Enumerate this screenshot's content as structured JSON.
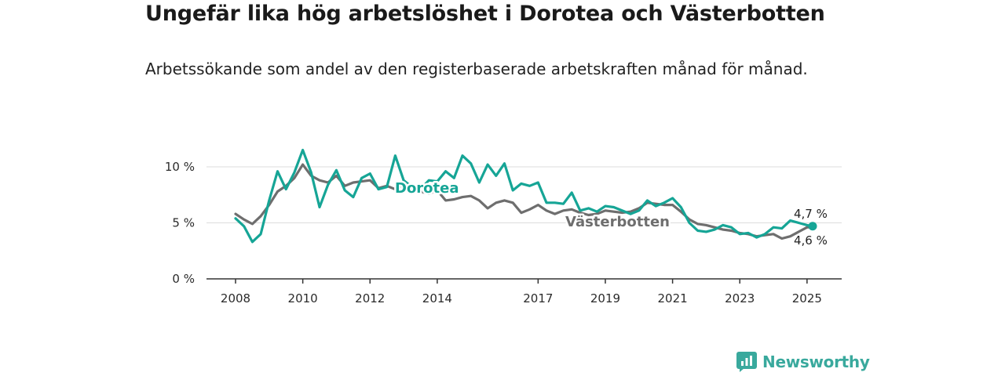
{
  "header": {
    "title": "Ungefär lika hög arbetslöshet i Dorotea och Västerbotten",
    "subtitle": "Arbetssökande som andel av den registerbaserade arbetskraften månad för månad."
  },
  "brand": {
    "name": "Newsworthy",
    "icon": "newsworthy-logo-icon",
    "color": "#39a99d"
  },
  "chart_data": {
    "type": "line",
    "title": "Ungefär lika hög arbetslöshet i Dorotea och Västerbotten",
    "subtitle": "Arbetssökande som andel av den registerbaserade arbetskraften månad för månad.",
    "x_ticks": [
      "2008",
      "2010",
      "2012",
      "2014",
      "2017",
      "2019",
      "2021",
      "2023",
      "2025"
    ],
    "y_ticks": [
      {
        "value": 0,
        "label": "0 %"
      },
      {
        "value": 5,
        "label": "5 %"
      },
      {
        "value": 10,
        "label": "10 %"
      }
    ],
    "ylim": [
      0,
      12
    ],
    "grid": "horizontal",
    "series": [
      {
        "name": "Dorotea",
        "color": "#16a596",
        "end_label": "4,7 %",
        "points": [
          [
            "2008-01",
            5.4
          ],
          [
            "2008-04",
            4.7
          ],
          [
            "2008-07",
            3.3
          ],
          [
            "2008-10",
            4.0
          ],
          [
            "2009-01",
            7.0
          ],
          [
            "2009-04",
            9.6
          ],
          [
            "2009-07",
            8.0
          ],
          [
            "2009-10",
            9.5
          ],
          [
            "2010-01",
            11.5
          ],
          [
            "2010-04",
            9.5
          ],
          [
            "2010-07",
            6.4
          ],
          [
            "2010-10",
            8.4
          ],
          [
            "2011-01",
            9.7
          ],
          [
            "2011-04",
            7.9
          ],
          [
            "2011-07",
            7.3
          ],
          [
            "2011-10",
            9.0
          ],
          [
            "2012-01",
            9.4
          ],
          [
            "2012-04",
            8.0
          ],
          [
            "2012-07",
            8.2
          ],
          [
            "2012-10",
            11.0
          ],
          [
            "2013-01",
            8.8
          ],
          [
            "2013-04",
            8.2
          ],
          [
            "2013-07",
            8.0
          ],
          [
            "2013-10",
            8.8
          ],
          [
            "2014-01",
            8.7
          ],
          [
            "2014-04",
            9.6
          ],
          [
            "2014-07",
            9.0
          ],
          [
            "2014-10",
            11.0
          ],
          [
            "2015-01",
            10.3
          ],
          [
            "2015-04",
            8.6
          ],
          [
            "2015-07",
            10.2
          ],
          [
            "2015-10",
            9.2
          ],
          [
            "2016-01",
            10.3
          ],
          [
            "2016-04",
            7.9
          ],
          [
            "2016-07",
            8.5
          ],
          [
            "2016-10",
            8.3
          ],
          [
            "2017-01",
            8.6
          ],
          [
            "2017-04",
            6.8
          ],
          [
            "2017-07",
            6.8
          ],
          [
            "2017-10",
            6.7
          ],
          [
            "2018-01",
            7.7
          ],
          [
            "2018-04",
            6.1
          ],
          [
            "2018-07",
            6.3
          ],
          [
            "2018-10",
            6.0
          ],
          [
            "2019-01",
            6.5
          ],
          [
            "2019-04",
            6.4
          ],
          [
            "2019-10",
            5.8
          ],
          [
            "2020-01",
            6.1
          ],
          [
            "2020-04",
            7.0
          ],
          [
            "2020-07",
            6.5
          ],
          [
            "2020-10",
            6.8
          ],
          [
            "2021-01",
            7.2
          ],
          [
            "2021-04",
            6.4
          ],
          [
            "2021-07",
            5.0
          ],
          [
            "2021-10",
            4.3
          ],
          [
            "2022-01",
            4.2
          ],
          [
            "2022-04",
            4.4
          ],
          [
            "2022-07",
            4.8
          ],
          [
            "2022-10",
            4.6
          ],
          [
            "2023-01",
            4.0
          ],
          [
            "2023-04",
            4.1
          ],
          [
            "2023-07",
            3.7
          ],
          [
            "2023-10",
            4.0
          ],
          [
            "2024-01",
            4.6
          ],
          [
            "2024-04",
            4.5
          ],
          [
            "2024-07",
            5.2
          ],
          [
            "2024-10",
            5.0
          ],
          [
            "2025-01",
            4.8
          ],
          [
            "2025-03",
            4.7
          ]
        ]
      },
      {
        "name": "Västerbotten",
        "color": "#6e6e6e",
        "end_label": "4,6 %",
        "points": [
          [
            "2008-01",
            5.8
          ],
          [
            "2008-04",
            5.3
          ],
          [
            "2008-07",
            4.9
          ],
          [
            "2008-10",
            5.6
          ],
          [
            "2009-01",
            6.6
          ],
          [
            "2009-04",
            7.8
          ],
          [
            "2009-07",
            8.3
          ],
          [
            "2009-10",
            9.0
          ],
          [
            "2010-01",
            10.2
          ],
          [
            "2010-04",
            9.2
          ],
          [
            "2010-07",
            8.8
          ],
          [
            "2010-10",
            8.6
          ],
          [
            "2011-01",
            9.2
          ],
          [
            "2011-04",
            8.3
          ],
          [
            "2011-07",
            8.6
          ],
          [
            "2011-10",
            8.7
          ],
          [
            "2012-01",
            8.8
          ],
          [
            "2012-04",
            8.1
          ],
          [
            "2012-07",
            8.3
          ],
          [
            "2012-10",
            8.0
          ],
          [
            "2013-01",
            8.4
          ],
          [
            "2013-04",
            7.7
          ],
          [
            "2013-07",
            7.8
          ],
          [
            "2013-10",
            7.6
          ],
          [
            "2014-01",
            7.9
          ],
          [
            "2014-04",
            7.0
          ],
          [
            "2014-07",
            7.1
          ],
          [
            "2014-10",
            7.3
          ],
          [
            "2015-01",
            7.4
          ],
          [
            "2015-04",
            7.0
          ],
          [
            "2015-07",
            6.3
          ],
          [
            "2015-10",
            6.8
          ],
          [
            "2016-01",
            7.0
          ],
          [
            "2016-04",
            6.8
          ],
          [
            "2016-07",
            5.9
          ],
          [
            "2016-10",
            6.2
          ],
          [
            "2017-01",
            6.6
          ],
          [
            "2017-04",
            6.1
          ],
          [
            "2017-07",
            5.8
          ],
          [
            "2017-10",
            6.1
          ],
          [
            "2018-01",
            6.2
          ],
          [
            "2018-04",
            5.9
          ],
          [
            "2018-07",
            5.7
          ],
          [
            "2018-10",
            5.8
          ],
          [
            "2019-01",
            6.1
          ],
          [
            "2019-04",
            6.0
          ],
          [
            "2019-07",
            5.9
          ],
          [
            "2019-10",
            6.0
          ],
          [
            "2020-01",
            6.3
          ],
          [
            "2020-04",
            6.8
          ],
          [
            "2020-07",
            6.7
          ],
          [
            "2020-10",
            6.6
          ],
          [
            "2021-01",
            6.6
          ],
          [
            "2021-04",
            6.0
          ],
          [
            "2021-07",
            5.3
          ],
          [
            "2021-10",
            4.9
          ],
          [
            "2022-01",
            4.8
          ],
          [
            "2022-04",
            4.6
          ],
          [
            "2022-07",
            4.4
          ],
          [
            "2022-10",
            4.3
          ],
          [
            "2023-01",
            4.1
          ],
          [
            "2023-04",
            4.0
          ],
          [
            "2023-07",
            3.8
          ],
          [
            "2023-10",
            3.9
          ],
          [
            "2024-01",
            4.0
          ],
          [
            "2024-04",
            3.6
          ],
          [
            "2024-07",
            3.8
          ],
          [
            "2024-10",
            4.2
          ],
          [
            "2025-01",
            4.6
          ],
          [
            "2025-03",
            4.6
          ]
        ]
      }
    ]
  }
}
